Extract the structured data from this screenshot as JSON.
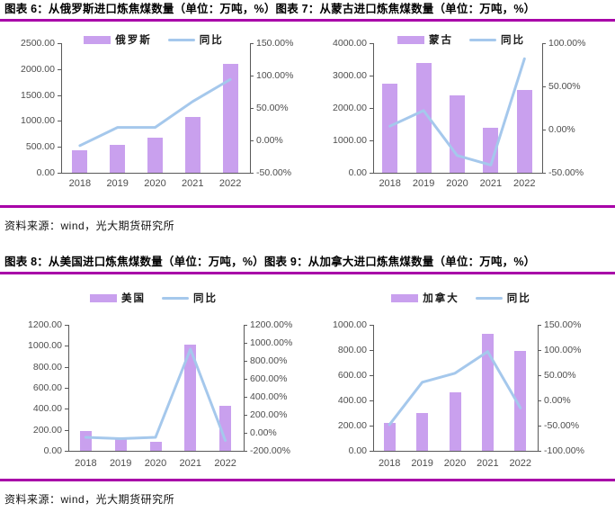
{
  "headers": {
    "row1_left": "图表 6：从俄罗斯进口炼焦煤数量（单位：万吨，%）",
    "row1_right": "图表 7：从蒙古进口炼焦煤数量（单位：万吨，%）",
    "row2_left": "图表 8：从美国进口炼焦煤数量（单位：万吨，%）",
    "row2_right": "图表 9：从加拿大进口炼焦煤数量（单位：万吨，%）"
  },
  "sources": {
    "row1": "资料来源：wind，光大期货研究所",
    "row2": "资料来源：wind，光大期货研究所"
  },
  "colors": {
    "bar": "#c9a0ee",
    "line": "#a5c8ec",
    "rule": "#a800a8",
    "axis": "#595959",
    "tick_label": "#4d4d4d"
  },
  "chart_data": [
    {
      "type": "bar+line",
      "figure": "图表 6",
      "categories": [
        "2018",
        "2019",
        "2020",
        "2021",
        "2022"
      ],
      "series": [
        {
          "name": "俄罗斯",
          "type": "bar",
          "axis": "left",
          "values": [
            440,
            530,
            670,
            1070,
            2100
          ]
        },
        {
          "name": "同比",
          "type": "line",
          "axis": "right",
          "values": [
            -8,
            20,
            20,
            60,
            94
          ]
        }
      ],
      "left_axis": {
        "min": 0,
        "max": 2500,
        "step": 500,
        "decimals": 2,
        "suffix": ""
      },
      "right_axis": {
        "min": -50,
        "max": 150,
        "step": 50,
        "decimals": 2,
        "suffix": "%"
      },
      "legend_position": "top",
      "grid": false
    },
    {
      "type": "bar+line",
      "figure": "图表 7",
      "categories": [
        "2018",
        "2019",
        "2020",
        "2021",
        "2022"
      ],
      "series": [
        {
          "name": "蒙古",
          "type": "bar",
          "axis": "left",
          "values": [
            2760,
            3380,
            2380,
            1400,
            2560
          ]
        },
        {
          "name": "同比",
          "type": "line",
          "axis": "right",
          "values": [
            4,
            22,
            -30,
            -41,
            82
          ]
        }
      ],
      "left_axis": {
        "min": 0,
        "max": 4000,
        "step": 1000,
        "decimals": 2,
        "suffix": ""
      },
      "right_axis": {
        "min": -50,
        "max": 100,
        "step": 50,
        "decimals": 2,
        "suffix": "%"
      },
      "legend_position": "top",
      "grid": false
    },
    {
      "type": "bar+line",
      "figure": "图表 8",
      "categories": [
        "2018",
        "2019",
        "2020",
        "2021",
        "2022"
      ],
      "series": [
        {
          "name": "美国",
          "type": "bar",
          "axis": "left",
          "values": [
            190,
            110,
            90,
            1010,
            430
          ]
        },
        {
          "name": "同比",
          "type": "line",
          "axis": "right",
          "values": [
            -50,
            -65,
            -50,
            930,
            -85
          ]
        }
      ],
      "left_axis": {
        "min": 0,
        "max": 1200,
        "step": 200,
        "decimals": 2,
        "suffix": ""
      },
      "right_axis": {
        "min": -200,
        "max": 1200,
        "step": 200,
        "decimals": 2,
        "suffix": "%"
      },
      "legend_position": "top",
      "grid": false
    },
    {
      "type": "bar+line",
      "figure": "图表 9",
      "categories": [
        "2018",
        "2019",
        "2020",
        "2021",
        "2022"
      ],
      "series": [
        {
          "name": "加拿大",
          "type": "bar",
          "axis": "left",
          "values": [
            220,
            300,
            465,
            930,
            790
          ]
        },
        {
          "name": "同比",
          "type": "line",
          "axis": "right",
          "values": [
            -48,
            36,
            54,
            97,
            -15
          ]
        }
      ],
      "left_axis": {
        "min": 0,
        "max": 1000,
        "step": 200,
        "decimals": 2,
        "suffix": ""
      },
      "right_axis": {
        "min": -100,
        "max": 150,
        "step": 50,
        "decimals": 2,
        "suffix": "%"
      },
      "legend_position": "top",
      "grid": false
    }
  ]
}
